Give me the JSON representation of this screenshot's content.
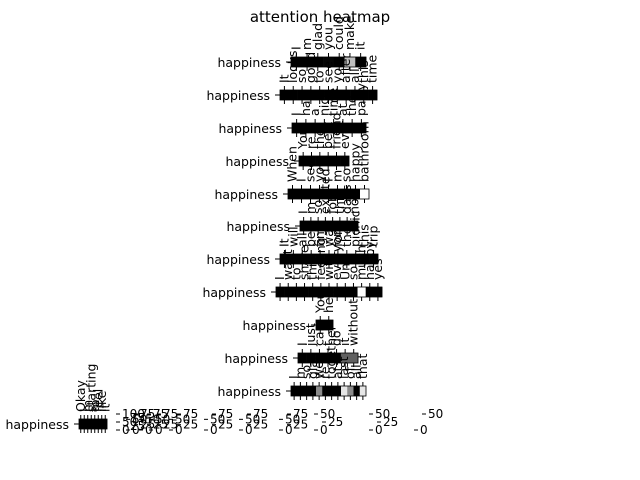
{
  "chart_data": {
    "type": "heatmap",
    "title": "attention heatmap",
    "colormap": "greys",
    "rows": [
      {
        "label": "happiness",
        "tokens": [
          "I",
          "m",
          "glad",
          "you",
          "could",
          "make",
          "it"
        ],
        "values": [
          0.0,
          0.0,
          0.0,
          0.02,
          0.0,
          0.75,
          0.0
        ]
      },
      {
        "label": "happiness",
        "tokens": [
          "It",
          "looks",
          "so",
          "good",
          "to",
          "see",
          "you",
          "after",
          "all",
          "this",
          "time"
        ],
        "values": [
          0.0,
          0.0,
          0.0,
          0.0,
          0.0,
          0.0,
          0.0,
          0.0,
          0.0,
          0.0,
          0.0
        ]
      },
      {
        "label": "happiness",
        "tokens": [
          "I",
          "had",
          "a",
          "nice",
          "time",
          "at",
          "the",
          "party"
        ],
        "values": [
          0.0,
          0.0,
          0.0,
          0.0,
          0.0,
          0.0,
          0.0,
          0.0
        ]
      },
      {
        "label": "happiness",
        "tokens": [
          "You",
          "re",
          "the",
          "best",
          "friend",
          "ever"
        ],
        "values": [
          0.0,
          0.0,
          0.0,
          0.0,
          0.0,
          0.0
        ]
      },
      {
        "label": "happiness",
        "tokens": [
          "When",
          "I",
          "see",
          "you",
          "I",
          "m",
          "so",
          "happy",
          "bathroom"
        ],
        "values": [
          0.0,
          0.0,
          0.0,
          0.0,
          0.0,
          0.0,
          0.0,
          0.0,
          1.0
        ]
      },
      {
        "label": "happiness",
        "tokens": [
          "I",
          "m",
          "so",
          "excited",
          "for",
          "this",
          "days",
          "now"
        ],
        "values": [
          0.0,
          0.0,
          0.0,
          0.0,
          0.0,
          0.0,
          0.0,
          0.0
        ]
      },
      {
        "label": "happiness",
        "tokens": [
          "It",
          "will",
          "all",
          "be",
          "fine",
          "wait",
          "for",
          "the",
          "picnic",
          "this",
          "trip"
        ],
        "values": [
          0.0,
          0.0,
          0.0,
          0.0,
          0.0,
          0.0,
          0.0,
          0.0,
          0.0,
          0.0,
          0.0
        ]
      },
      {
        "label": "happiness",
        "tokens": [
          "I",
          "want",
          "to",
          "share",
          "this",
          "feeling",
          "with",
          "everyone",
          "Um",
          "so",
          "much",
          "happy",
          "yes"
        ],
        "values": [
          0.0,
          0.0,
          0.0,
          0.0,
          0.0,
          0.0,
          0.0,
          0.0,
          0.0,
          0.0,
          1.0,
          0.0,
          0.0
        ]
      },
      {
        "label": "happiness",
        "tokens": [
          "You",
          "help"
        ],
        "values": [
          0.0,
          0.0
        ]
      },
      {
        "label": "happiness",
        "tokens": [
          "I",
          "just",
          "can",
          "t",
          "do",
          "it",
          "without"
        ],
        "values": [
          0.0,
          0.0,
          0.0,
          0.0,
          0.0,
          0.38,
          0.38
        ]
      },
      {
        "label": "happiness",
        "tokens": [
          "I",
          "m",
          "so",
          "glad",
          "we",
          "re",
          "together",
          "at",
          "last",
          "of",
          "all",
          "that"
        ],
        "values": [
          0.0,
          0.0,
          0.0,
          0.0,
          0.55,
          0.0,
          0.0,
          0.0,
          0.9,
          0.55,
          0.0,
          0.9
        ]
      },
      {
        "label": "happiness",
        "tokens": [
          "Okay",
          "I",
          "m",
          "starting",
          "to",
          "feel",
          "like",
          "it"
        ],
        "values": [
          0.0,
          0.0,
          0.0,
          0.0,
          0.0,
          0.0,
          0.0,
          0.0
        ]
      }
    ],
    "colorbars": [
      {
        "ticks": [
          "0",
          "25",
          "50",
          "75",
          "100"
        ]
      },
      {
        "ticks": [
          "0",
          "25",
          "50",
          "75"
        ]
      },
      {
        "ticks": [
          "0",
          "25",
          "50",
          "75"
        ]
      },
      {
        "ticks": [
          "0",
          "25",
          "50",
          "75"
        ]
      },
      {
        "ticks": [
          "0",
          "25",
          "50",
          "75"
        ]
      },
      {
        "ticks": [
          "0",
          "25",
          "50",
          "75"
        ]
      },
      {
        "ticks": [
          "0",
          "25",
          "50",
          "75"
        ]
      },
      {
        "ticks": [
          "0",
          "25",
          "50",
          "75"
        ]
      },
      {
        "ticks": [
          "0",
          "25",
          "50"
        ]
      },
      {
        "ticks": [
          "0",
          "25",
          "50"
        ]
      },
      {
        "ticks": [
          "0",
          "50"
        ]
      }
    ]
  }
}
